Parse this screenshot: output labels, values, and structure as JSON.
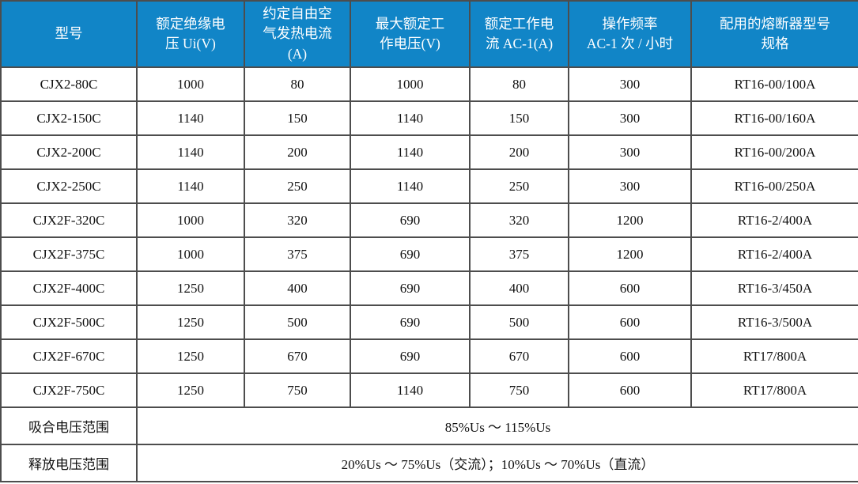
{
  "table": {
    "colors": {
      "header_bg": "#1185c7",
      "header_text": "#ffffff",
      "border": "#4d4d4d",
      "body_text": "#111111"
    },
    "columns": [
      {
        "label": "型号"
      },
      {
        "label": "额定绝缘电\n压 Ui(V)"
      },
      {
        "label": "约定自由空\n气发热电流\n(A)"
      },
      {
        "label": "最大额定工\n作电压(V)"
      },
      {
        "label": "额定工作电\n流 AC-1(A)"
      },
      {
        "label": "操作频率\nAC-1 次 / 小时"
      },
      {
        "label": "配用的熔断器型号\n规格"
      }
    ],
    "rows": [
      [
        "CJX2-80C",
        "1000",
        "80",
        "1000",
        "80",
        "300",
        "RT16-00/100A"
      ],
      [
        "CJX2-150C",
        "1140",
        "150",
        "1140",
        "150",
        "300",
        "RT16-00/160A"
      ],
      [
        "CJX2-200C",
        "1140",
        "200",
        "1140",
        "200",
        "300",
        "RT16-00/200A"
      ],
      [
        "CJX2-250C",
        "1140",
        "250",
        "1140",
        "250",
        "300",
        "RT16-00/250A"
      ],
      [
        "CJX2F-320C",
        "1000",
        "320",
        "690",
        "320",
        "1200",
        "RT16-2/400A"
      ],
      [
        "CJX2F-375C",
        "1000",
        "375",
        "690",
        "375",
        "1200",
        "RT16-2/400A"
      ],
      [
        "CJX2F-400C",
        "1250",
        "400",
        "690",
        "400",
        "600",
        "RT16-3/450A"
      ],
      [
        "CJX2F-500C",
        "1250",
        "500",
        "690",
        "500",
        "600",
        "RT16-3/500A"
      ],
      [
        "CJX2F-670C",
        "1250",
        "670",
        "690",
        "670",
        "600",
        "RT17/800A"
      ],
      [
        "CJX2F-750C",
        "1250",
        "750",
        "1140",
        "750",
        "600",
        "RT17/800A"
      ]
    ],
    "footer_rows": [
      {
        "label": "吸合电压范围",
        "value": "85%Us ～ 115%Us"
      },
      {
        "label": "释放电压范围",
        "value": "20%Us ～ 75%Us（交流）；10%Us ～ 70%Us（直流）"
      }
    ]
  }
}
